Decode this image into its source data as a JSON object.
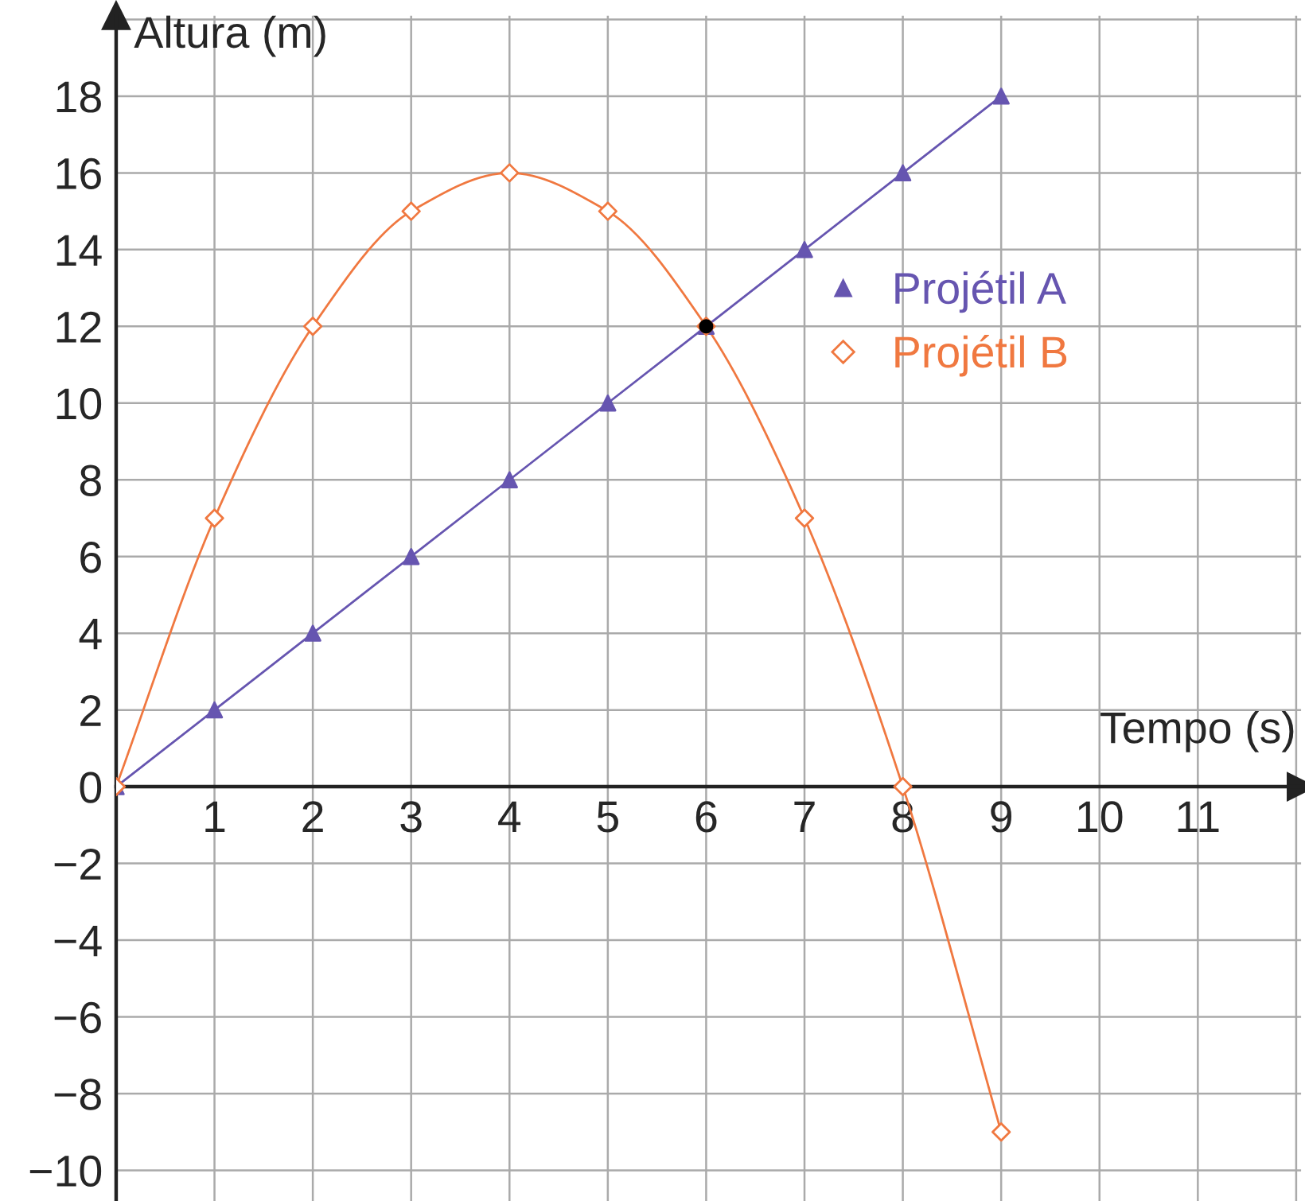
{
  "chart_data": {
    "type": "line",
    "xlabel": "Tempo (s)",
    "ylabel": "Altura (m)",
    "x": [
      0,
      1,
      2,
      3,
      4,
      5,
      6,
      7,
      8,
      9
    ],
    "series": [
      {
        "name": "Projétil A",
        "color": "#6655b0",
        "marker": "triangle",
        "values": [
          0,
          2,
          4,
          6,
          8,
          10,
          12,
          14,
          16,
          18
        ]
      },
      {
        "name": "Projétil B",
        "color": "#f07840",
        "marker": "diamond",
        "values": [
          0,
          7,
          12,
          15,
          16,
          15,
          12,
          7,
          0,
          -9
        ]
      },
      {
        "type": "scatter",
        "color": "#000000",
        "marker": "circle",
        "x": [
          6
        ],
        "values": [
          12
        ]
      }
    ],
    "xlim": [
      0,
      12.05
    ],
    "ylim": [
      -10.8,
      20.1
    ],
    "xticks": [
      1,
      2,
      3,
      4,
      5,
      6,
      7,
      8,
      9,
      10,
      11
    ],
    "yticks": [
      {
        "value": -10,
        "label": "−10"
      },
      {
        "value": -8,
        "label": "−8"
      },
      {
        "value": -6,
        "label": "−6"
      },
      {
        "value": -4,
        "label": "−4"
      },
      {
        "value": -2,
        "label": "−2"
      },
      0,
      2,
      4,
      6,
      8,
      10,
      12,
      14,
      16,
      18
    ],
    "grid": true,
    "legend": "right",
    "line_style": "solid"
  }
}
